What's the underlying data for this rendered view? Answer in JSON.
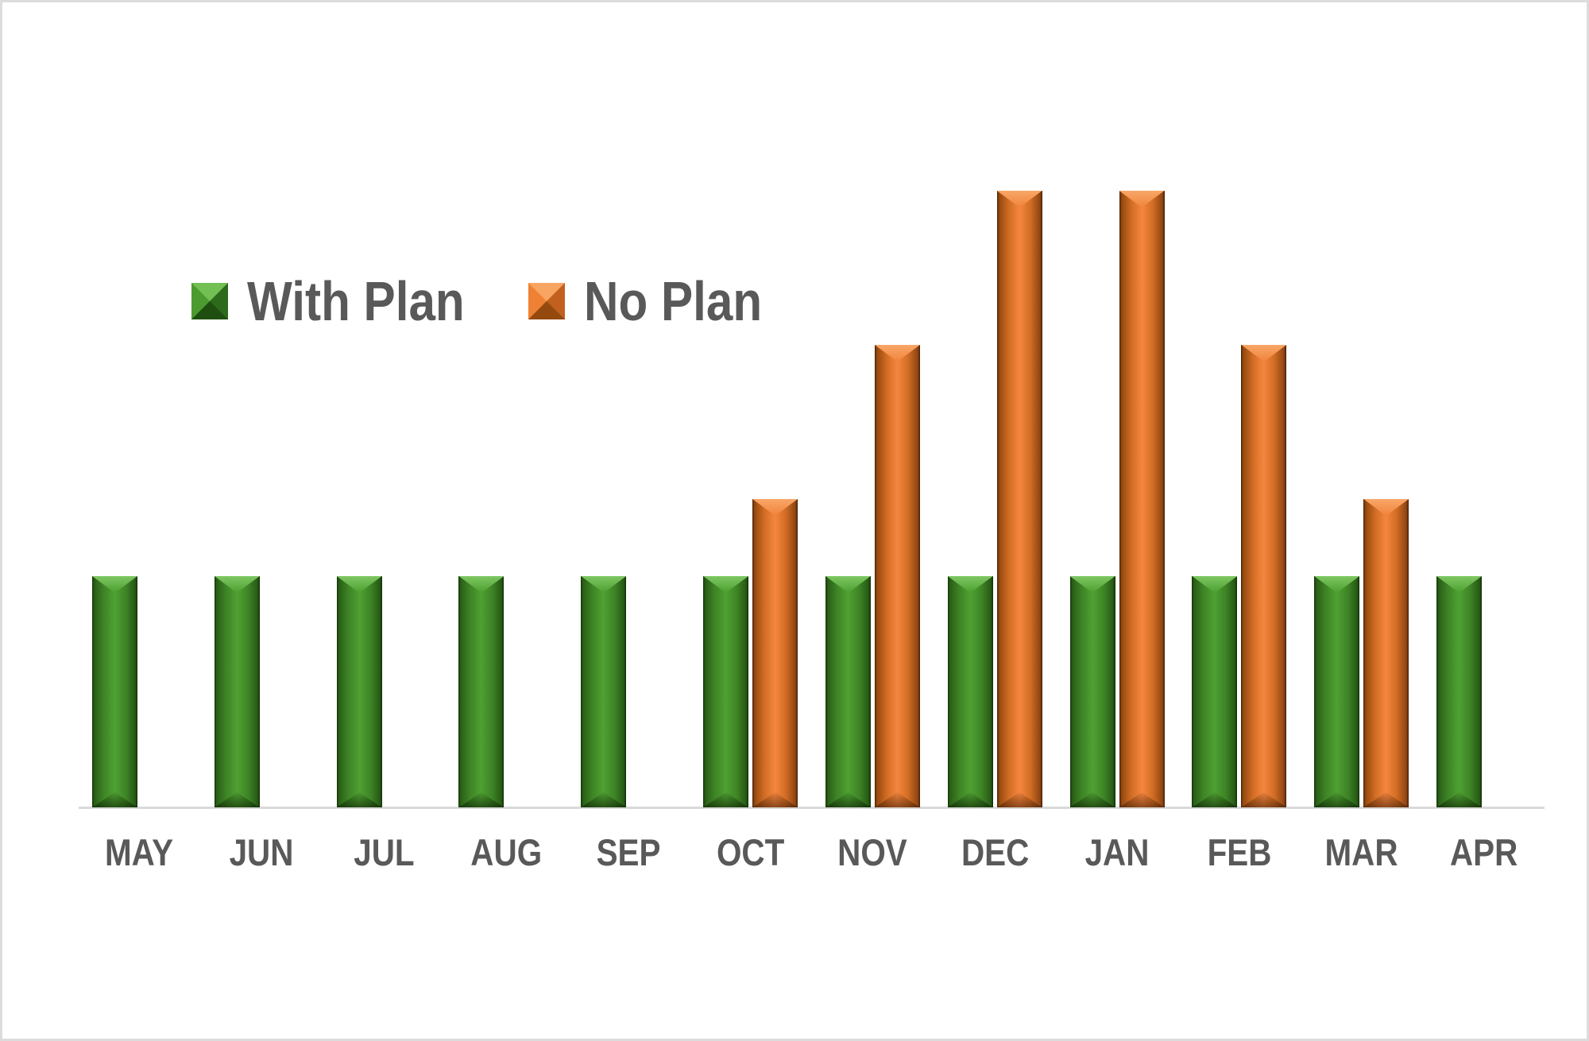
{
  "legend": {
    "items": [
      {
        "label": "With Plan",
        "color": "#4C9C30"
      },
      {
        "label": "No Plan",
        "color": "#F0823A"
      }
    ]
  },
  "chart_data": {
    "type": "bar",
    "categories": [
      "MAY",
      "JUN",
      "JUL",
      "AUG",
      "SEP",
      "OCT",
      "NOV",
      "DEC",
      "JAN",
      "FEB",
      "MAR",
      "APR"
    ],
    "series": [
      {
        "name": "With Plan",
        "color": "#4C9C30",
        "values": [
          300,
          300,
          300,
          300,
          300,
          300,
          300,
          300,
          300,
          300,
          300,
          300
        ]
      },
      {
        "name": "No Plan",
        "color": "#F0823A",
        "values": [
          0,
          0,
          0,
          0,
          0,
          400,
          600,
          800,
          800,
          600,
          400,
          0
        ]
      }
    ],
    "title": "",
    "xlabel": "",
    "ylabel": "",
    "ylim": [
      0,
      850
    ],
    "y_axis_visible": false,
    "grid": false,
    "legend_position": "upper-left-inside",
    "axis_line_color": "#D9D9D9",
    "label_color": "#595959",
    "bar_style": "3d-bevel"
  }
}
